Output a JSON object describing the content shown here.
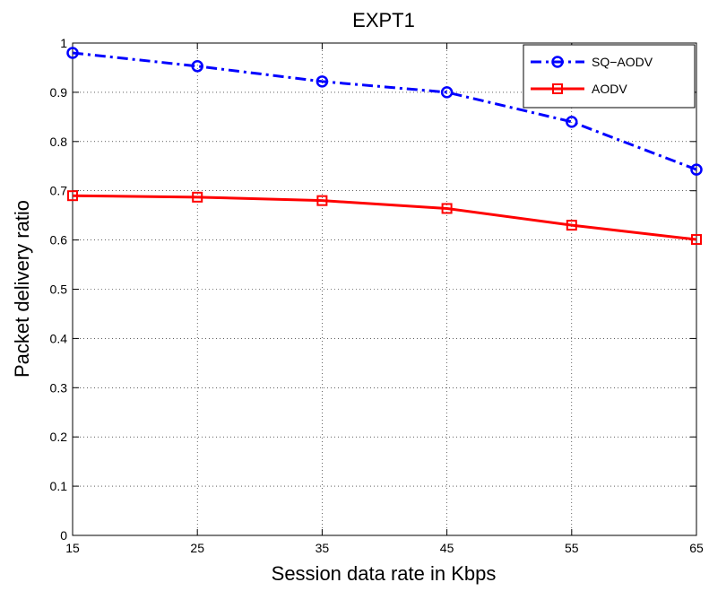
{
  "chart_data": {
    "type": "line",
    "title": "EXPT1",
    "xlabel": "Session data rate in Kbps",
    "ylabel": "Packet delivery ratio",
    "x": [
      15,
      25,
      35,
      45,
      55,
      65
    ],
    "xlim": [
      15,
      65
    ],
    "ylim": [
      0,
      1
    ],
    "xticks": [
      "15",
      "25",
      "35",
      "45",
      "55",
      "65"
    ],
    "yticks": [
      "0",
      "0.1",
      "0.2",
      "0.3",
      "0.4",
      "0.5",
      "0.6",
      "0.7",
      "0.8",
      "0.9",
      "1"
    ],
    "grid": true,
    "legend_position": "top-right",
    "series": [
      {
        "name": "SQ−AODV",
        "values": [
          0.98,
          0.953,
          0.922,
          0.9,
          0.84,
          0.743
        ],
        "color": "#0000ff",
        "line_style": "dash-dot",
        "marker": "circle"
      },
      {
        "name": "AODV",
        "values": [
          0.69,
          0.687,
          0.68,
          0.664,
          0.63,
          0.601
        ],
        "color": "#ff0000",
        "line_style": "solid",
        "marker": "square"
      }
    ]
  }
}
